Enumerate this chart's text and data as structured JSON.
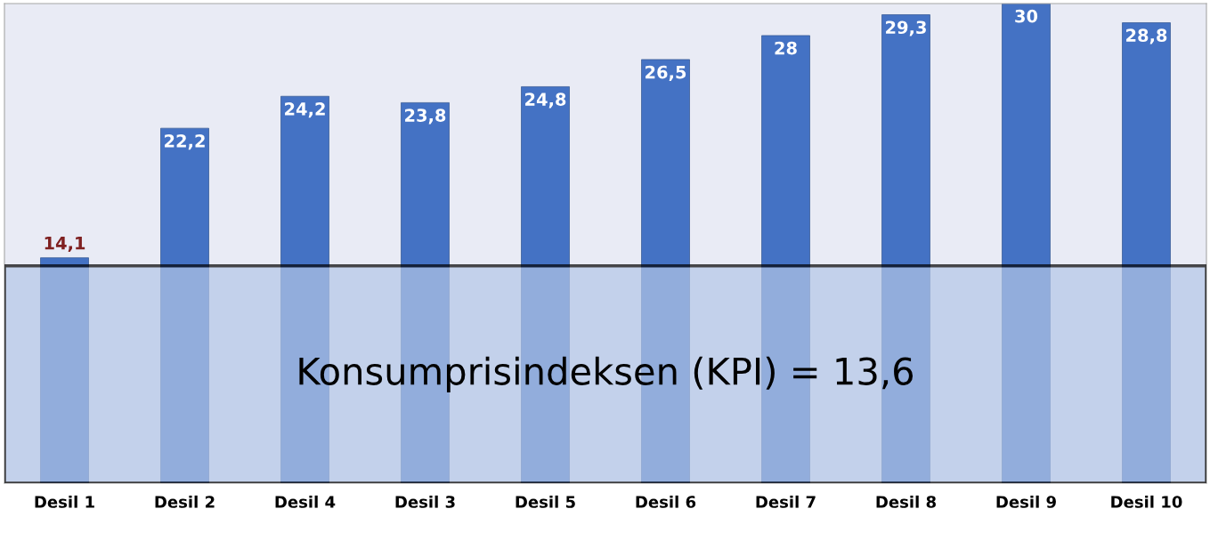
{
  "chart_data": {
    "type": "bar",
    "categories": [
      "Desil 1",
      "Desil 2",
      "Desil 4",
      "Desil 3",
      "Desil 5",
      "Desil 6",
      "Desil 7",
      "Desil 8",
      "Desil 9",
      "Desil 10"
    ],
    "values": [
      14.1,
      22.2,
      24.2,
      23.8,
      24.8,
      26.5,
      28,
      29.3,
      30,
      28.8
    ],
    "value_labels": [
      "14,1",
      "22,2",
      "24,2",
      "23,8",
      "24,8",
      "26,5",
      "28",
      "29,3",
      "30",
      "28,8"
    ],
    "color": "#4472c4",
    "ylim": [
      0,
      30
    ],
    "tick_labels": "x",
    "bands": [
      {
        "axis": "y",
        "from": 0,
        "to": 13.6,
        "label": "Konsumprisindeksen (KPI) = 13,6",
        "color": "#b4c7e7"
      }
    ],
    "grid": false,
    "legend": false
  }
}
